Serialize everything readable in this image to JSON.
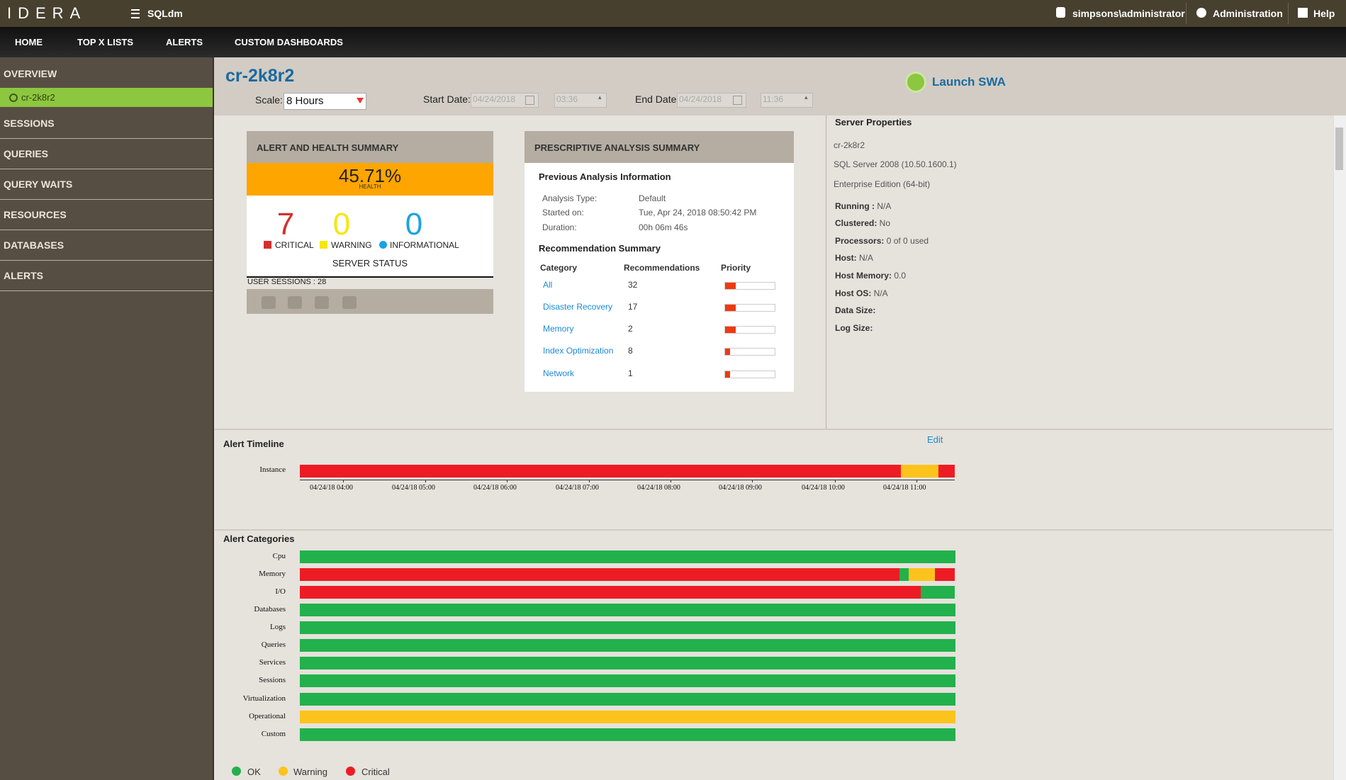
{
  "header": {
    "logo": "IDERA",
    "app": "SQLdm",
    "user": "simpsons\\administrator",
    "admin": "Administration",
    "help": "Help"
  },
  "nav": [
    "HOME",
    "TOP X LISTS",
    "ALERTS",
    "CUSTOM DASHBOARDS"
  ],
  "sidebar": {
    "overview": "OVERVIEW",
    "server": "cr-2k8r2",
    "items": [
      "SESSIONS",
      "QUERIES",
      "QUERY WAITS",
      "RESOURCES",
      "DATABASES",
      "ALERTS"
    ]
  },
  "toolbar": {
    "title": "cr-2k8r2",
    "scale_label": "Scale:",
    "scale": "8 Hours",
    "start_label": "Start Date:",
    "start_date": "04/24/2018",
    "start_time": "03:36",
    "end_label": "End Date:",
    "end_date": "04/24/2018",
    "end_time": "11:36",
    "launch": "Launch SWA"
  },
  "health": {
    "title": "ALERT AND HEALTH SUMMARY",
    "percent": "45.71%",
    "percent_label": "HEALTH",
    "counts": [
      {
        "value": 7,
        "label": "CRITICAL"
      },
      {
        "value": 0,
        "label": "WARNING"
      },
      {
        "value": 0,
        "label": "INFORMATIONAL"
      }
    ],
    "status": "SERVER STATUS",
    "sessions": "USER SESSIONS : 28"
  },
  "analysis": {
    "title": "PRESCRIPTIVE ANALYSIS SUMMARY",
    "info_title": "Previous Analysis Information",
    "info": [
      {
        "label": "Analysis Type:",
        "value": "Default"
      },
      {
        "label": "Started on:",
        "value": "Tue, Apr 24, 2018 08:50:42 PM"
      },
      {
        "label": "Duration:",
        "value": "00h 06m 46s"
      }
    ],
    "rec_title": "Recommendation Summary",
    "columns": [
      "Category",
      "Recommendations",
      "Priority"
    ],
    "rows": [
      {
        "category": "All",
        "count": 32
      },
      {
        "category": "Disaster Recovery",
        "count": 17
      },
      {
        "category": "Memory",
        "count": 2
      },
      {
        "category": "Index Optimization",
        "count": 8
      },
      {
        "category": "Network",
        "count": 1
      }
    ]
  },
  "properties": {
    "title": "Server Properties",
    "lines": [
      "cr-2k8r2",
      "SQL Server 2008 (10.50.1600.1)",
      "Enterprise Edition (64-bit)"
    ],
    "fields": [
      {
        "label": "Running :",
        "value": "N/A"
      },
      {
        "label": "Clustered:",
        "value": "No"
      },
      {
        "label": "Processors:",
        "value": "0 of 0 used"
      },
      {
        "label": "Host:",
        "value": "N/A"
      },
      {
        "label": "Host Memory:",
        "value": "0.0"
      },
      {
        "label": "Host OS:",
        "value": "N/A"
      },
      {
        "label": "Data Size:"
      },
      {
        "label": "Log Size:"
      }
    ]
  },
  "timeline": {
    "title": "Alert Timeline",
    "edit": "Edit",
    "row": "Instance",
    "ticks": [
      "04/24/18 04:00",
      "04/24/18 05:00",
      "04/24/18 06:00",
      "04/24/18 07:00",
      "04/24/18 08:00",
      "04/24/18 09:00",
      "04/24/18 10:00",
      "04/24/18 11:00"
    ]
  },
  "categories": {
    "title": "Alert Categories",
    "rows": [
      "Cpu",
      "Memory",
      "I/O",
      "Databases",
      "Logs",
      "Queries",
      "Services",
      "Sessions",
      "Virtualization",
      "Operational",
      "Custom"
    ]
  },
  "legend": [
    "OK",
    "Warning",
    "Critical"
  ]
}
